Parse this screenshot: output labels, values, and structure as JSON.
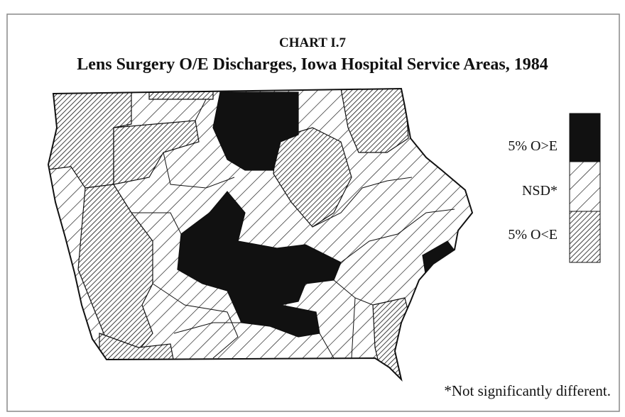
{
  "header": {
    "chart_label": "CHART I.7",
    "title": "Lens Surgery O/E Discharges, Iowa Hospital Service Areas, 1984"
  },
  "legend": [
    {
      "label": "5% O>E"
    },
    {
      "label": "NSD*"
    },
    {
      "label": "5% O<E"
    }
  ],
  "footnote": "*Not significantly different."
}
